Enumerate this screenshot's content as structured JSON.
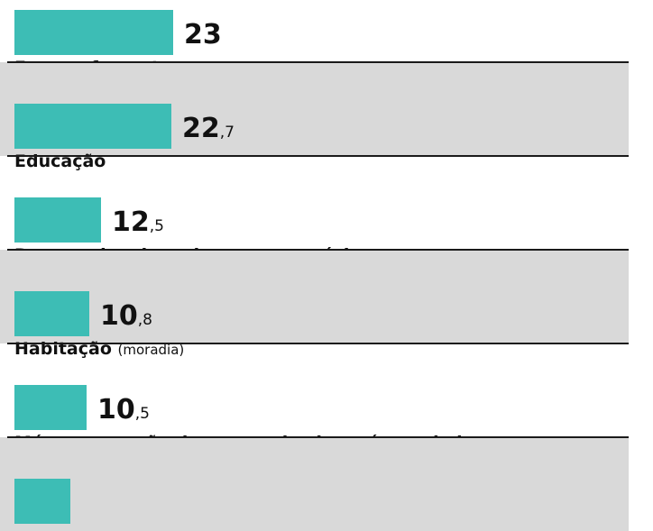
{
  "chart_data": {
    "type": "bar",
    "orientation": "horizontal",
    "categories": [
      "Engarrafamentos",
      "Educação",
      "Burocracia e barreiras para negócios",
      "Habitação",
      "Má conservação de ruas, calçadas e áreas de lazer",
      ""
    ],
    "category_notes": [
      "",
      "",
      "",
      "(moradia)",
      "",
      ""
    ],
    "values": [
      23,
      22.7,
      12.5,
      10.8,
      10.5,
      null
    ],
    "value_labels": [
      {
        "int": "23",
        "dec": ""
      },
      {
        "int": "22",
        "dec": ",7"
      },
      {
        "int": "12",
        "dec": ",5"
      },
      {
        "int": "10",
        "dec": ",8"
      },
      {
        "int": "10",
        "dec": ",5"
      },
      {
        "int": "",
        "dec": ""
      }
    ],
    "xlim": [
      0,
      23
    ],
    "grid": false,
    "legend": "none",
    "title": "",
    "xlabel": "",
    "ylabel": ""
  },
  "colors": {
    "bar": "#3dbdb5",
    "row_shade": "#d9d9d9",
    "divider": "#1a1a1a",
    "text": "#111111",
    "background": "#ffffff"
  }
}
